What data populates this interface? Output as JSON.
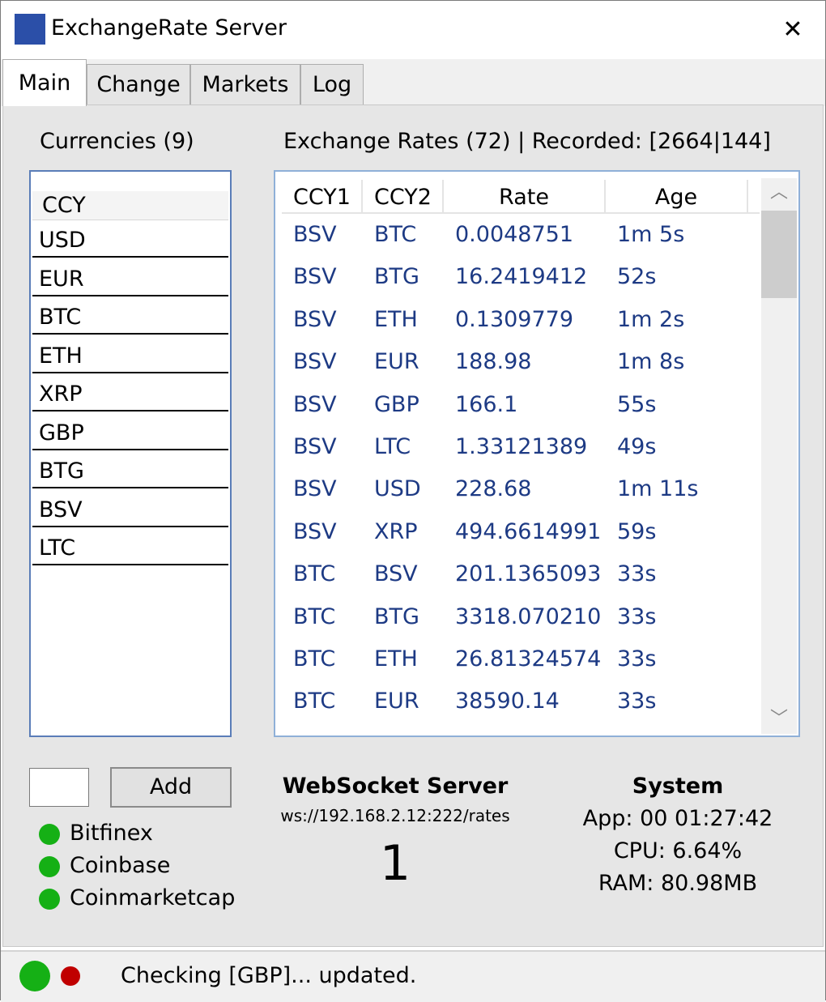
{
  "window": {
    "title": "ExchangeRate Server",
    "close_glyph": "✕"
  },
  "tabs": [
    {
      "label": "Main",
      "active": true
    },
    {
      "label": "Change",
      "active": false
    },
    {
      "label": "Markets",
      "active": false
    },
    {
      "label": "Log",
      "active": false
    }
  ],
  "currencies": {
    "heading": "Currencies (9)",
    "column_header": "CCY",
    "items": [
      "USD",
      "EUR",
      "BTC",
      "ETH",
      "XRP",
      "GBP",
      "BTG",
      "BSV",
      "LTC"
    ]
  },
  "rates": {
    "heading": "Exchange Rates (72) | Recorded: [2664|144]",
    "columns": [
      "CCY1",
      "CCY2",
      "Rate",
      "Age"
    ],
    "rows": [
      [
        "BSV",
        "BTC",
        "0.0048751",
        "1m 5s"
      ],
      [
        "BSV",
        "BTG",
        "16.2419412",
        "52s"
      ],
      [
        "BSV",
        "ETH",
        "0.1309779",
        "1m 2s"
      ],
      [
        "BSV",
        "EUR",
        "188.98",
        "1m 8s"
      ],
      [
        "BSV",
        "GBP",
        "166.1",
        "55s"
      ],
      [
        "BSV",
        "LTC",
        "1.33121389",
        "49s"
      ],
      [
        "BSV",
        "USD",
        "228.68",
        "1m 11s"
      ],
      [
        "BSV",
        "XRP",
        "494.6614991",
        "59s"
      ],
      [
        "BTC",
        "BSV",
        "201.1365093",
        "33s"
      ],
      [
        "BTC",
        "BTG",
        "3318.070210",
        "33s"
      ],
      [
        "BTC",
        "ETH",
        "26.81324574",
        "33s"
      ],
      [
        "BTC",
        "EUR",
        "38590.14",
        "33s"
      ]
    ],
    "scroll_fraction": 0.0
  },
  "add": {
    "input_value": "",
    "button_label": "Add"
  },
  "markets": [
    {
      "name": "Bitfinex",
      "status_color": "#15b015"
    },
    {
      "name": "Coinbase",
      "status_color": "#15b015"
    },
    {
      "name": "Coinmarketcap",
      "status_color": "#15b015"
    }
  ],
  "websocket": {
    "title": "WebSocket Server",
    "url": "ws://192.168.2.12:222/rates",
    "connections": "1"
  },
  "system": {
    "title": "System",
    "app": "App: 00 01:27:42",
    "cpu": "CPU: 6.64%",
    "ram": "RAM: 80.98MB"
  },
  "status": {
    "message": "Checking [GBP]... updated.",
    "green_color": "#15b015",
    "red_color": "#c00000"
  },
  "colors": {
    "accent": "#2b4fa8",
    "rate_text": "#1d3a84"
  }
}
